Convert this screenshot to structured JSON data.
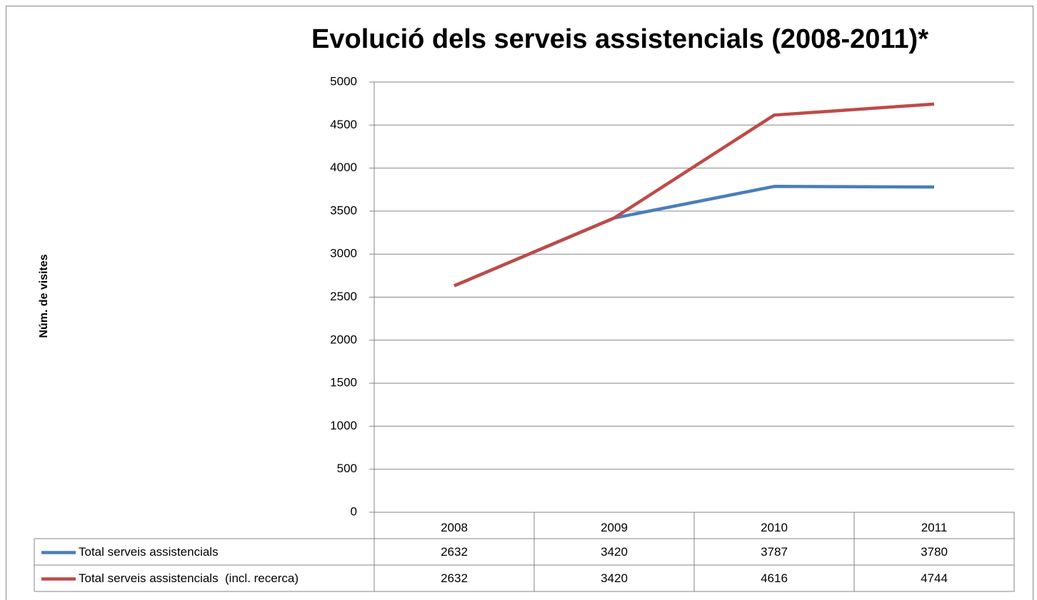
{
  "chart_data": {
    "type": "line",
    "title": "Evolució dels serveis assistencials (2008-2011)*",
    "y_label": "Núm. de visites",
    "categories": [
      "2008",
      "2009",
      "2010",
      "2011"
    ],
    "series": [
      {
        "name": "Total serveis assistencials",
        "color": "#4a7ebb",
        "values": [
          2632,
          3420,
          3787,
          3780
        ]
      },
      {
        "name": "Total serveis assistencials  (incl. recerca)",
        "color": "#be4b48",
        "values": [
          2632,
          3420,
          4616,
          4744
        ]
      }
    ],
    "ylim": [
      0,
      5000
    ],
    "yticks": [
      0,
      500,
      1000,
      1500,
      2000,
      2500,
      3000,
      3500,
      4000,
      4500,
      5000
    ],
    "grid": true,
    "data_table": true
  }
}
